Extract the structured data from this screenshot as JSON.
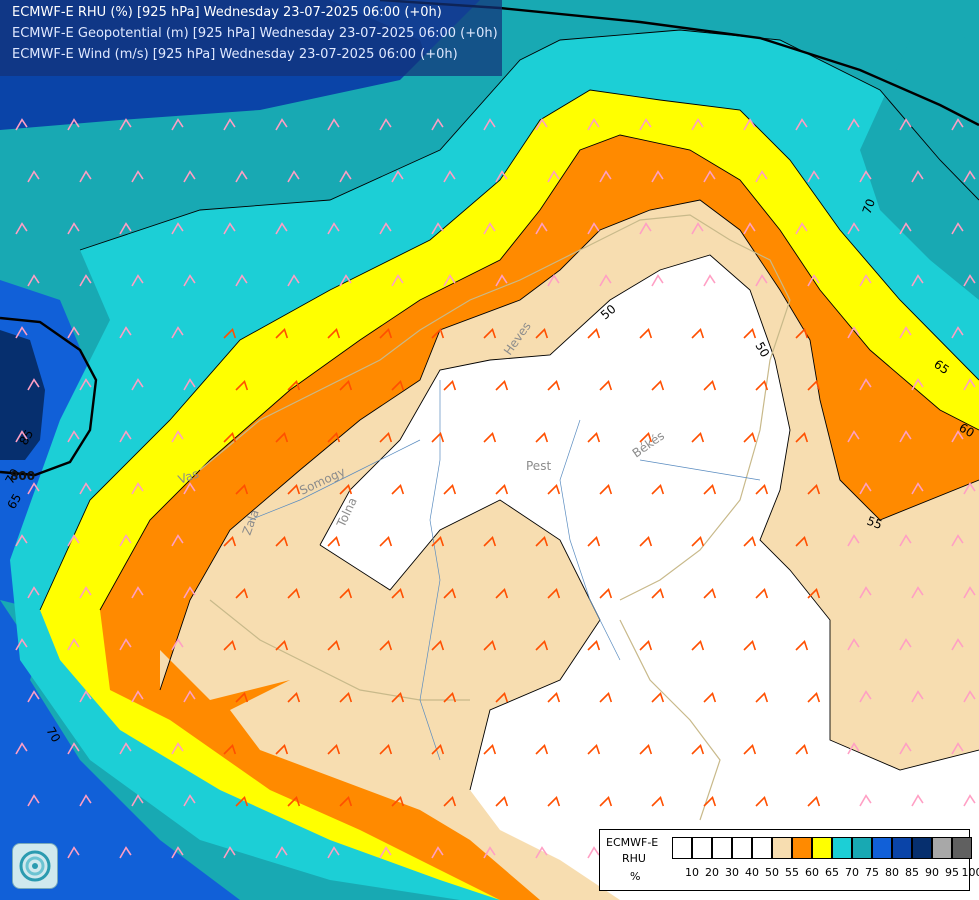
{
  "title": {
    "rhu": "ECMWF-E RHU (%) [925 hPa] Wednesday 23-07-2025 06:00 (+0h)",
    "geo": "ECMWF-E Geopotential (m) [925 hPa] Wednesday 23-07-2025 06:00 (+0h)",
    "wind": "ECMWF-E Wind (m/s) [925 hPa] Wednesday 23-07-2025 06:00 (+0h)"
  },
  "map_labels": {
    "pest": "Pest",
    "bekes": "Békés",
    "heves": "Heves",
    "somogy": "Somogy",
    "zala": "Zala",
    "tolna": "Tolna",
    "vas": "Vas",
    "geopotential_800": "800"
  },
  "contour_labels": [
    "50",
    "50",
    "55",
    "60",
    "65",
    "70",
    "70",
    "65",
    "70",
    "85"
  ],
  "legend": {
    "line1": "ECMWF-E",
    "line2": "RHU",
    "line3": "%",
    "ticks": [
      "10",
      "20",
      "30",
      "40",
      "50",
      "55",
      "60",
      "65",
      "70",
      "75",
      "80",
      "85",
      "90",
      "95",
      "100"
    ],
    "colors": [
      "#ffffff",
      "#ffffff",
      "#ffffff",
      "#ffffff",
      "#ffffff",
      "#f7ddb0",
      "#ff8a00",
      "#ffff00",
      "#1ccfd6",
      "#18a9b3",
      "#1160d8",
      "#0a44a8",
      "#062f6e",
      "#a8a8a8",
      "#606060"
    ]
  },
  "colors": {
    "white": "#ffffff",
    "beige": "#f7ddb0",
    "orange": "#ff8a00",
    "yellow": "#ffff00",
    "cyan": "#1ccfd6",
    "teal": "#18a9b3",
    "blue": "#1160d8",
    "darkblue": "#0a44a8",
    "navy": "#062f6e",
    "barb_warm": "#ff4f00",
    "barb_cool": "#ff9fc4"
  },
  "logo_icon": "ecmwf-logo-icon"
}
